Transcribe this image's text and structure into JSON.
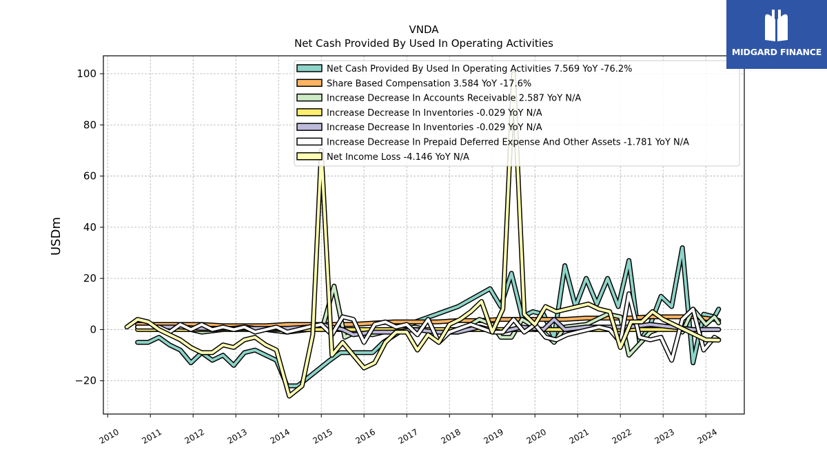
{
  "logo": {
    "text": "MIDGARD FINANCE",
    "icon": "midgard-m-icon",
    "background": "#2f56a6"
  },
  "chart_data": {
    "type": "line",
    "title": "VNDA",
    "subtitle": "Net Cash Provided By Used In Operating Activities",
    "ylabel": "USDm",
    "xlabel": "",
    "xlim": [
      2009.9,
      2024.9
    ],
    "ylim": [
      -33,
      107
    ],
    "x_ticks": [
      "2010",
      "2011",
      "2012",
      "2013",
      "2014",
      "2015",
      "2016",
      "2017",
      "2018",
      "2019",
      "2020",
      "2021",
      "2022",
      "2023",
      "2024"
    ],
    "y_ticks": [
      -20,
      0,
      20,
      40,
      60,
      80,
      100
    ],
    "y_tick_labels": [
      "−20",
      "0",
      "20",
      "40",
      "60",
      "80",
      "100"
    ],
    "grid": true,
    "legend_position": "top",
    "series": [
      {
        "name": "Net Cash Provided By Used In Operating Activities",
        "legend": "Net Cash Provided By Used In Operating Activities  7.569 YoY -76.2%",
        "color": "#8dd3c7",
        "x": [
          2010.7,
          2010.95,
          2011.2,
          2011.45,
          2011.7,
          2011.95,
          2012.2,
          2012.45,
          2012.7,
          2012.95,
          2013.2,
          2013.45,
          2013.7,
          2013.95,
          2014.2,
          2014.45,
          2015.2,
          2015.45,
          2016.2,
          2016.45,
          2017.2,
          2018.2,
          2018.95,
          2019.2,
          2019.45,
          2019.7,
          2019.95,
          2020.2,
          2020.45,
          2020.7,
          2020.95,
          2021.2,
          2021.45,
          2021.7,
          2021.95,
          2022.2,
          2022.45,
          2022.7,
          2022.95,
          2023.2,
          2023.45,
          2023.7,
          2023.95,
          2024.2,
          2024.3
        ],
        "y": [
          -5,
          -5,
          -3,
          -6,
          -8,
          -13,
          -9,
          -12,
          -10,
          -14,
          -9,
          -8,
          -10,
          -12,
          -22,
          -22,
          -12,
          -9,
          -9,
          -5,
          3,
          9,
          16,
          9,
          22,
          5,
          7,
          6,
          -3,
          25,
          9,
          20,
          10,
          20,
          9,
          27,
          -5,
          2,
          13,
          9,
          32,
          -13,
          6,
          5,
          8
        ]
      },
      {
        "name": "Share Based Compensation",
        "legend": "Share Based Compensation  3.584 YoY -17.6%",
        "color": "#fdb462",
        "x": [
          2010.7,
          2011.2,
          2011.7,
          2012.2,
          2012.7,
          2013.2,
          2013.7,
          2014.2,
          2014.7,
          2015.2,
          2015.7,
          2016.2,
          2016.7,
          2017.2,
          2017.7,
          2018.2,
          2018.7,
          2019.2,
          2019.7,
          2020.2,
          2020.7,
          2021.2,
          2021.7,
          2022.2,
          2022.7,
          2023.2,
          2023.7,
          2024.2,
          2024.3
        ],
        "y": [
          2,
          2,
          2,
          2,
          1.5,
          1.5,
          1.5,
          2,
          2,
          2,
          2,
          2.5,
          3,
          3,
          3,
          3.5,
          3.5,
          4,
          4,
          4,
          4,
          4.5,
          4.5,
          4.5,
          5,
          5,
          5,
          4,
          3.6
        ]
      },
      {
        "name": "Increase Decrease In Accounts Receivable",
        "legend": "Increase Decrease In Accounts Receivable  2.587 YoY N/A",
        "color": "#ccebc5",
        "x": [
          2010.7,
          2011.2,
          2011.7,
          2012.2,
          2012.7,
          2013.2,
          2013.7,
          2014.2,
          2014.7,
          2015.05,
          2015.3,
          2015.55,
          2015.8,
          2016.2,
          2016.7,
          2017.2,
          2017.7,
          2018.2,
          2018.7,
          2019.0,
          2019.2,
          2019.45,
          2019.7,
          2020.2,
          2020.45,
          2020.7,
          2021.2,
          2021.7,
          2022.0,
          2022.2,
          2022.7,
          2023.2,
          2023.45,
          2023.7,
          2024.0,
          2024.2,
          2024.3
        ],
        "y": [
          1,
          0,
          1,
          -1,
          0,
          1,
          0,
          -1,
          0,
          2,
          17,
          -3,
          -1,
          -2,
          0,
          1,
          -1,
          -1,
          4,
          2,
          -3,
          -3,
          4,
          -1,
          -5,
          1,
          2,
          6,
          5,
          -10,
          -1,
          2,
          -1,
          8,
          2,
          5,
          2.6
        ]
      },
      {
        "name": "Increase Decrease In Inventories",
        "legend": "Increase Decrease In Inventories  -0.029 YoY N/A",
        "color": "#ffed6f",
        "x": [
          2010.7,
          2011.2,
          2011.7,
          2012.2,
          2012.7,
          2013.2,
          2013.7,
          2014.2,
          2014.7,
          2015.2,
          2015.7,
          2016.2,
          2016.7,
          2017.2,
          2017.7,
          2018.2,
          2018.7,
          2019.2,
          2019.7,
          2020.2,
          2020.7,
          2021.2,
          2021.7,
          2022.2,
          2022.7,
          2023.2,
          2023.7,
          2024.2,
          2024.3
        ],
        "y": [
          0,
          0,
          0,
          0,
          0,
          0,
          0,
          0,
          0,
          0,
          0,
          0,
          0,
          0,
          0,
          0,
          0,
          0,
          0,
          0,
          0,
          0,
          0,
          0,
          0,
          0,
          0,
          0,
          0
        ]
      },
      {
        "name": "Increase Decrease In Inventories",
        "legend": "Increase Decrease In Inventories  -0.029 YoY N/A",
        "color": "#bebada",
        "x": [
          2010.7,
          2011.2,
          2011.7,
          2012.2,
          2012.7,
          2013.2,
          2013.7,
          2014.2,
          2014.7,
          2015.0,
          2015.5,
          2015.75,
          2016.2,
          2016.7,
          2017.2,
          2017.7,
          2018.2,
          2018.7,
          2019.2,
          2019.7,
          2020.2,
          2020.45,
          2020.7,
          2021.2,
          2021.7,
          2022.2,
          2022.7,
          2023.2,
          2023.7,
          2024.2,
          2024.3
        ],
        "y": [
          1,
          1,
          1,
          0.5,
          0.5,
          0.5,
          0.5,
          0.5,
          1,
          2,
          0,
          -2,
          -1,
          -1,
          0,
          -1,
          -1,
          1,
          -1,
          1,
          0,
          4,
          0,
          1,
          1,
          1,
          2,
          1,
          0,
          0,
          0
        ]
      },
      {
        "name": "Increase Decrease In Prepaid Deferred Expense And Other Assets",
        "legend": "Increase Decrease In Prepaid Deferred Expense And Other Assets  -1.781 YoY N/A",
        "color": "#ffffff",
        "x": [
          2010.7,
          2011.2,
          2011.45,
          2011.7,
          2011.95,
          2012.2,
          2012.45,
          2012.7,
          2012.95,
          2013.2,
          2013.45,
          2013.7,
          2013.95,
          2014.2,
          2014.45,
          2014.7,
          2015.0,
          2015.25,
          2015.5,
          2015.75,
          2016.0,
          2016.25,
          2016.5,
          2016.75,
          2017.0,
          2017.25,
          2017.5,
          2017.75,
          2018.0,
          2018.5,
          2019.0,
          2019.25,
          2019.5,
          2019.75,
          2020.0,
          2020.25,
          2020.5,
          2020.75,
          2021.0,
          2021.25,
          2021.5,
          2021.75,
          2022.0,
          2022.2,
          2022.45,
          2022.7,
          2022.95,
          2023.2,
          2023.45,
          2023.7,
          2023.95,
          2024.2,
          2024.3
        ],
        "y": [
          1,
          1,
          -1,
          2,
          0,
          2,
          0,
          1,
          0,
          1,
          -1,
          0,
          1,
          -1,
          0,
          1,
          2,
          -2,
          5,
          4,
          -5,
          2,
          3,
          1,
          2,
          -2,
          4,
          -5,
          -1,
          2,
          -1,
          -1,
          4,
          -1,
          2,
          -3,
          -4,
          -2,
          -1,
          0,
          1,
          0,
          -5,
          14,
          -3,
          -4,
          -3,
          -12,
          4,
          8,
          -8,
          -3,
          -4
        ]
      },
      {
        "name": "Net Income Loss",
        "legend": "Net Income Loss  -4.146 YoY N/A",
        "color": "#ffffb3",
        "x": [
          2010.45,
          2010.7,
          2010.95,
          2011.2,
          2011.45,
          2011.7,
          2011.95,
          2012.2,
          2012.45,
          2012.7,
          2012.95,
          2013.2,
          2013.45,
          2013.7,
          2013.95,
          2014.25,
          2014.4,
          2014.55,
          2014.8,
          2015.0,
          2015.25,
          2015.5,
          2015.75,
          2016.0,
          2016.25,
          2016.5,
          2016.75,
          2017.0,
          2017.25,
          2017.5,
          2017.75,
          2018.0,
          2018.25,
          2018.5,
          2018.75,
          2019.0,
          2019.25,
          2019.5,
          2019.75,
          2020.0,
          2020.25,
          2020.5,
          2020.75,
          2021.0,
          2021.25,
          2021.5,
          2021.75,
          2022.0,
          2022.25,
          2022.5,
          2022.75,
          2023.0,
          2023.25,
          2023.5,
          2023.75,
          2024.0,
          2024.3
        ],
        "y": [
          1,
          4,
          3,
          0,
          -2,
          -4,
          -7,
          -9,
          -9,
          -6,
          -7,
          -4,
          -3,
          -6,
          -8,
          -26,
          -24,
          -22,
          -2,
          70,
          -10,
          -5,
          -10,
          -15,
          -13,
          -5,
          -1,
          -1,
          -8,
          -2,
          -5,
          2,
          4,
          7,
          11,
          -1,
          8,
          100,
          6,
          2,
          9,
          7,
          8,
          9,
          10,
          8,
          7,
          -7,
          3,
          3,
          7,
          4,
          2,
          0,
          -2,
          -4,
          -4.1
        ]
      }
    ]
  }
}
